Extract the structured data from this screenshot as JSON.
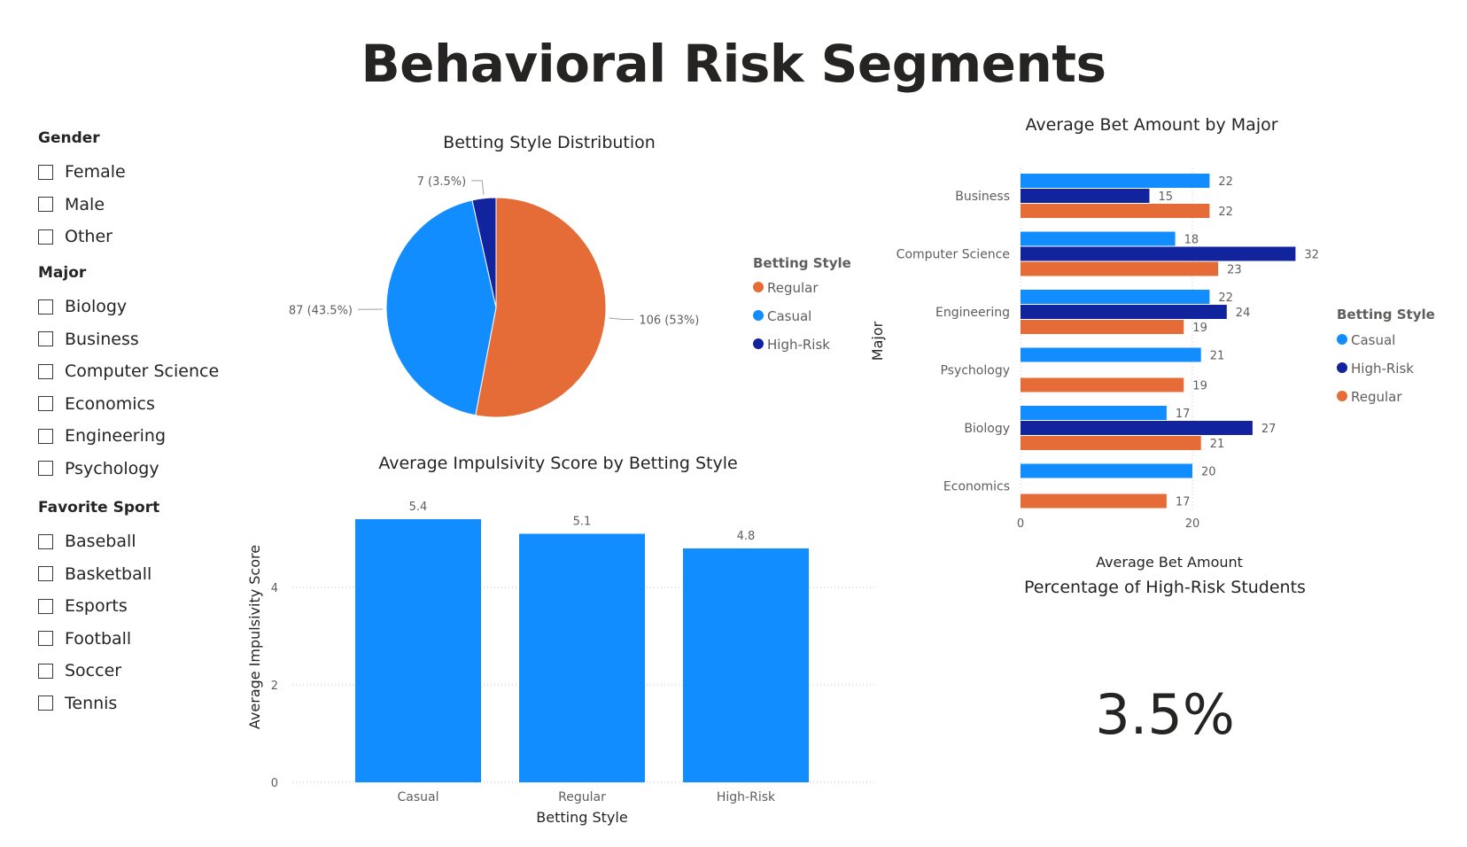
{
  "page_title": "Behavioral Risk Segments",
  "slicers": [
    {
      "title": "Gender",
      "items": [
        "Female",
        "Male",
        "Other"
      ]
    },
    {
      "title": "Major",
      "items": [
        "Biology",
        "Business",
        "Computer Science",
        "Economics",
        "Engineering",
        "Psychology"
      ]
    },
    {
      "title": "Favorite Sport",
      "items": [
        "Baseball",
        "Basketball",
        "Esports",
        "Football",
        "Soccer",
        "Tennis"
      ]
    }
  ],
  "colors": {
    "regular": "#E66C37",
    "casual": "#118DFF",
    "high_risk": "#12239E"
  },
  "kpi": {
    "title": "Percentage of High-Risk Students",
    "value": "3.5%"
  },
  "chart_data": [
    {
      "type": "pie",
      "title": "Betting Style Distribution",
      "legend_title": "Betting Style",
      "legend_position": "right",
      "slices": [
        {
          "name": "Regular",
          "value": 106,
          "label": "106 (53%)"
        },
        {
          "name": "Casual",
          "value": 87,
          "label": "87 (43.5%)"
        },
        {
          "name": "High-Risk",
          "value": 7,
          "label": "7 (3.5%)"
        }
      ]
    },
    {
      "type": "bar",
      "title": "Average Impulsivity Score by Betting Style",
      "categories": [
        "Casual",
        "Regular",
        "High-Risk"
      ],
      "values": [
        5.4,
        5.1,
        4.8
      ],
      "xlabel": "Betting Style",
      "ylabel": "Average Impulsivity Score",
      "yticks": [
        "0",
        "2",
        "4"
      ],
      "ylim": [
        0,
        5.6
      ],
      "grid": true
    },
    {
      "type": "bar",
      "orientation": "horizontal",
      "title": "Average Bet Amount by Major",
      "xlabel": "Average Bet Amount",
      "ylabel": "Major",
      "legend_title": "Betting Style",
      "legend_position": "right",
      "xticks": [
        "0",
        "20"
      ],
      "xlim": [
        0,
        36
      ],
      "categories": [
        "Business",
        "Computer Science",
        "Engineering",
        "Psychology",
        "Biology",
        "Economics"
      ],
      "series": [
        {
          "name": "Casual",
          "values": [
            22,
            18,
            22,
            21,
            17,
            20
          ]
        },
        {
          "name": "High-Risk",
          "values": [
            15,
            32,
            24,
            null,
            27,
            null
          ]
        },
        {
          "name": "Regular",
          "values": [
            22,
            23,
            19,
            19,
            21,
            17
          ]
        }
      ]
    }
  ]
}
